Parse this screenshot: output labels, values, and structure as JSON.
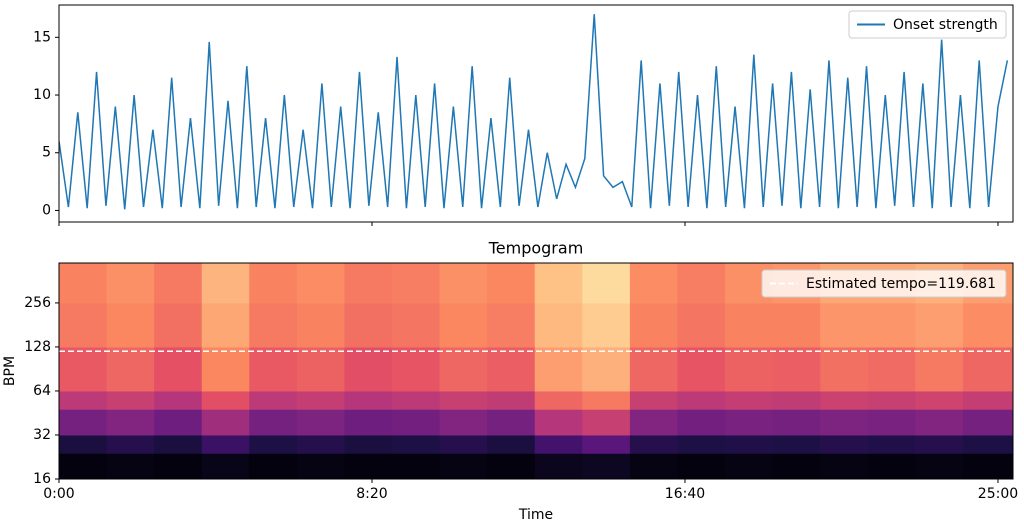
{
  "chart_data": [
    {
      "type": "line",
      "x": [
        0,
        15,
        30,
        45,
        60,
        75,
        90,
        105,
        120,
        135,
        150,
        165,
        180,
        195,
        210,
        225,
        240,
        255,
        270,
        285,
        300,
        315,
        330,
        345,
        360,
        375,
        390,
        405,
        420,
        435,
        450,
        465,
        480,
        495,
        510,
        525,
        540,
        555,
        570,
        585,
        600,
        615,
        630,
        645,
        660,
        675,
        690,
        705,
        720,
        735,
        750,
        765,
        780,
        795,
        810,
        825,
        840,
        855,
        870,
        885,
        900,
        915,
        930,
        945,
        960,
        975,
        990,
        1005,
        1020,
        1035,
        1050,
        1065,
        1080,
        1095,
        1110,
        1125,
        1140,
        1155,
        1170,
        1185,
        1200,
        1215,
        1230,
        1245,
        1260,
        1275,
        1290,
        1305,
        1320,
        1335,
        1350,
        1365,
        1380,
        1395,
        1410,
        1425,
        1440,
        1455,
        1470,
        1485,
        1500,
        1515
      ],
      "series": [
        {
          "name": "Onset strength",
          "color": "#1f77b4",
          "values": [
            6,
            0.3,
            8.5,
            0.2,
            12,
            0.4,
            9,
            0.1,
            10,
            0.3,
            7,
            0.2,
            11.5,
            0.3,
            8,
            0.2,
            14.6,
            0.4,
            9.5,
            0.2,
            12.5,
            0.3,
            8,
            0.2,
            10,
            0.3,
            7,
            0.2,
            11,
            0.3,
            9,
            0.2,
            12,
            0.4,
            8.5,
            0.3,
            13.3,
            0.2,
            10,
            0.3,
            11,
            0.2,
            9,
            0.3,
            12.5,
            0.2,
            8,
            0.3,
            11.5,
            0.4,
            7,
            0.3,
            5,
            1,
            4,
            2,
            4.5,
            17,
            3,
            2,
            2.5,
            0.3,
            13,
            0.2,
            11,
            0.4,
            12,
            0.3,
            10,
            0.2,
            12.5,
            0.3,
            9,
            0.2,
            13.5,
            0.3,
            11,
            0.4,
            12,
            0.2,
            10.5,
            0.3,
            13,
            0.2,
            11.5,
            0.3,
            12.5,
            0.2,
            10,
            0.4,
            12,
            0.3,
            11,
            0.2,
            14.8,
            0.3,
            10,
            0.2,
            13,
            0.3,
            9,
            13
          ]
        }
      ],
      "xlim": [
        0,
        1524
      ],
      "xticks": [
        0,
        500,
        1000,
        1500
      ],
      "ylim": [
        -1,
        17.8
      ],
      "yticks": [
        0,
        5,
        10,
        15
      ],
      "legend": "upper right"
    },
    {
      "type": "heatmap",
      "title": "Tempogram",
      "x_label": "Time",
      "y_label": "BPM",
      "colormap": "magma",
      "yscale": "log2",
      "x_edges": [
        0,
        76,
        152,
        228,
        304,
        380,
        456,
        532,
        608,
        684,
        760,
        836,
        912,
        988,
        1064,
        1140,
        1216,
        1292,
        1368,
        1444,
        1524
      ],
      "y_edges": [
        16,
        24,
        32,
        48,
        64,
        128,
        256,
        480
      ],
      "values": [
        [
          0.02,
          0.03,
          0.02,
          0.04,
          0.02,
          0.03,
          0.02,
          0.02,
          0.03,
          0.02,
          0.05,
          0.06,
          0.03,
          0.02,
          0.03,
          0.02,
          0.03,
          0.02,
          0.03,
          0.02
        ],
        [
          0.12,
          0.15,
          0.12,
          0.2,
          0.13,
          0.15,
          0.12,
          0.13,
          0.15,
          0.12,
          0.22,
          0.28,
          0.15,
          0.13,
          0.14,
          0.13,
          0.15,
          0.14,
          0.15,
          0.13
        ],
        [
          0.35,
          0.38,
          0.33,
          0.45,
          0.35,
          0.37,
          0.33,
          0.34,
          0.38,
          0.35,
          0.5,
          0.55,
          0.38,
          0.34,
          0.36,
          0.35,
          0.37,
          0.36,
          0.38,
          0.35
        ],
        [
          0.52,
          0.55,
          0.5,
          0.62,
          0.52,
          0.54,
          0.5,
          0.52,
          0.55,
          0.53,
          0.68,
          0.72,
          0.55,
          0.52,
          0.54,
          0.53,
          0.56,
          0.55,
          0.57,
          0.54
        ],
        [
          0.65,
          0.68,
          0.63,
          0.75,
          0.65,
          0.67,
          0.62,
          0.64,
          0.68,
          0.66,
          0.8,
          0.84,
          0.68,
          0.64,
          0.67,
          0.66,
          0.7,
          0.69,
          0.72,
          0.68
        ],
        [
          0.72,
          0.75,
          0.7,
          0.82,
          0.72,
          0.74,
          0.7,
          0.71,
          0.75,
          0.73,
          0.86,
          0.9,
          0.74,
          0.71,
          0.74,
          0.74,
          0.78,
          0.78,
          0.8,
          0.76
        ],
        [
          0.74,
          0.77,
          0.72,
          0.85,
          0.74,
          0.76,
          0.72,
          0.73,
          0.77,
          0.75,
          0.88,
          0.93,
          0.76,
          0.73,
          0.77,
          0.78,
          0.82,
          0.82,
          0.84,
          0.8
        ]
      ],
      "reference_line": {
        "name": "Estimated tempo=119.681",
        "value": 119.681,
        "color": "#ffffff",
        "style": "dashed"
      },
      "xlim": [
        0,
        1524
      ],
      "xticks": [
        {
          "value": 0,
          "label": "0:00"
        },
        {
          "value": 500,
          "label": "8:20"
        },
        {
          "value": 1000,
          "label": "16:40"
        },
        {
          "value": 1500,
          "label": "25:00"
        }
      ],
      "ylim": [
        16,
        480
      ],
      "yticks": [
        16,
        32,
        64,
        128,
        256
      ],
      "legend": "upper right"
    }
  ]
}
